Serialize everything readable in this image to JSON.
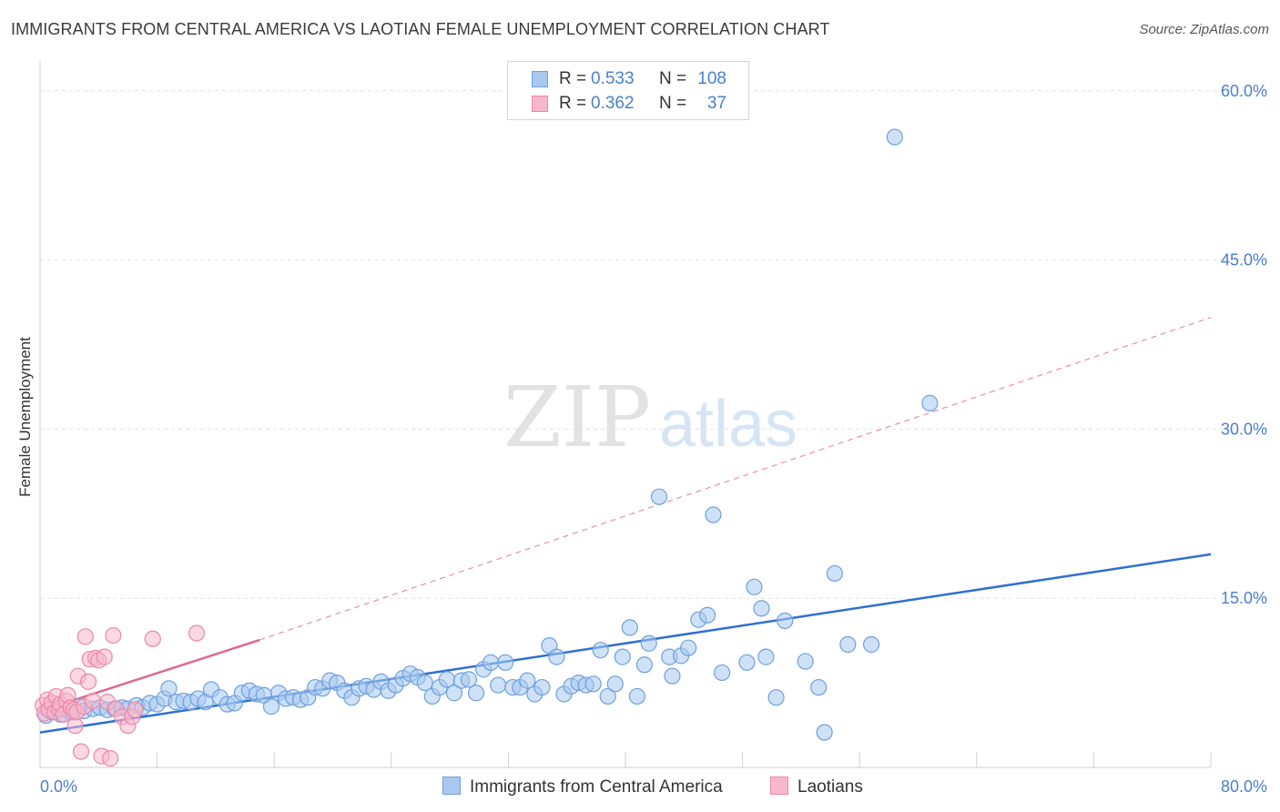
{
  "header": {
    "title": "IMMIGRANTS FROM CENTRAL AMERICA VS LAOTIAN FEMALE UNEMPLOYMENT CORRELATION CHART",
    "source": "Source: ZipAtlas.com"
  },
  "watermark": {
    "zip": "ZIP",
    "atlas": "atlas"
  },
  "legend_top": {
    "rows": [
      {
        "r_label": "R =",
        "r_value": "0.533",
        "n_label": "N =",
        "n_value": "108"
      },
      {
        "r_label": "R =",
        "r_value": "0.362",
        "n_label": "N =",
        "n_value": "37"
      }
    ]
  },
  "legend_bottom": {
    "items": [
      {
        "label": "Immigrants from Central America"
      },
      {
        "label": "Laotians"
      }
    ]
  },
  "colors": {
    "blue_fill": "#a8c8f0",
    "blue_stroke": "#6fa0dd",
    "blue_line": "#2f6fd0",
    "pink_fill": "#f8b8cc",
    "pink_stroke": "#ea88a8",
    "pink_line": "#e06890",
    "axis_text": "#4a7fcf",
    "grid": "#e2e2e2"
  },
  "chart_data": {
    "type": "scatter",
    "title": "IMMIGRANTS FROM CENTRAL AMERICA VS LAOTIAN FEMALE UNEMPLOYMENT CORRELATION CHART",
    "xlabel": "",
    "ylabel": "Female Unemployment",
    "xlim": [
      0,
      80
    ],
    "ylim": [
      0,
      62
    ],
    "x_tick_labels": [
      "0.0%",
      "80.0%"
    ],
    "y_ticks": [
      15,
      30,
      45,
      60
    ],
    "y_tick_labels": [
      "15.0%",
      "30.0%",
      "45.0%",
      "60.0%"
    ],
    "grid": true,
    "legend_position": "top-center",
    "series": [
      {
        "name": "Immigrants from Central America",
        "r": 0.533,
        "n": 108,
        "trend": {
          "x": [
            0,
            80
          ],
          "y": [
            3.1,
            18.9
          ],
          "style": "solid"
        },
        "points": [
          [
            0.4,
            4.6
          ],
          [
            0.8,
            4.9
          ],
          [
            1.1,
            5.3
          ],
          [
            1.4,
            4.7
          ],
          [
            1.8,
            5.1
          ],
          [
            2.2,
            4.9
          ],
          [
            2.7,
            5.4
          ],
          [
            3.0,
            5.0
          ],
          [
            3.6,
            5.2
          ],
          [
            4.1,
            5.3
          ],
          [
            4.6,
            5.1
          ],
          [
            5.1,
            5.2
          ],
          [
            5.6,
            5.3
          ],
          [
            6.0,
            5.2
          ],
          [
            6.6,
            5.5
          ],
          [
            7.0,
            5.3
          ],
          [
            7.5,
            5.7
          ],
          [
            8.0,
            5.6
          ],
          [
            8.5,
            6.1
          ],
          [
            8.8,
            7.0
          ],
          [
            9.3,
            5.8
          ],
          [
            9.8,
            5.9
          ],
          [
            10.3,
            5.8
          ],
          [
            10.8,
            6.1
          ],
          [
            11.3,
            5.8
          ],
          [
            11.7,
            6.9
          ],
          [
            12.3,
            6.2
          ],
          [
            12.8,
            5.6
          ],
          [
            13.3,
            5.7
          ],
          [
            13.8,
            6.6
          ],
          [
            14.3,
            6.8
          ],
          [
            14.8,
            6.5
          ],
          [
            15.3,
            6.4
          ],
          [
            15.8,
            5.4
          ],
          [
            16.3,
            6.6
          ],
          [
            16.8,
            6.1
          ],
          [
            17.3,
            6.2
          ],
          [
            17.8,
            6.0
          ],
          [
            18.3,
            6.2
          ],
          [
            18.8,
            7.1
          ],
          [
            19.3,
            7.0
          ],
          [
            19.8,
            7.7
          ],
          [
            20.3,
            7.5
          ],
          [
            20.8,
            6.8
          ],
          [
            21.3,
            6.2
          ],
          [
            21.8,
            7.0
          ],
          [
            22.3,
            7.2
          ],
          [
            22.8,
            6.9
          ],
          [
            23.3,
            7.6
          ],
          [
            23.8,
            6.8
          ],
          [
            24.3,
            7.3
          ],
          [
            24.8,
            7.9
          ],
          [
            25.3,
            8.3
          ],
          [
            25.8,
            8.0
          ],
          [
            26.3,
            7.5
          ],
          [
            26.8,
            6.3
          ],
          [
            27.3,
            7.1
          ],
          [
            27.8,
            7.8
          ],
          [
            28.3,
            6.6
          ],
          [
            28.8,
            7.7
          ],
          [
            29.3,
            7.8
          ],
          [
            29.8,
            6.6
          ],
          [
            30.3,
            8.7
          ],
          [
            30.8,
            9.3
          ],
          [
            31.3,
            7.3
          ],
          [
            31.8,
            9.3
          ],
          [
            32.3,
            7.1
          ],
          [
            32.8,
            7.1
          ],
          [
            33.3,
            7.7
          ],
          [
            33.8,
            6.5
          ],
          [
            34.3,
            7.1
          ],
          [
            34.8,
            10.8
          ],
          [
            35.3,
            9.8
          ],
          [
            35.8,
            6.5
          ],
          [
            36.3,
            7.2
          ],
          [
            36.8,
            7.5
          ],
          [
            37.3,
            7.3
          ],
          [
            37.8,
            7.4
          ],
          [
            38.3,
            10.4
          ],
          [
            38.8,
            6.3
          ],
          [
            39.3,
            7.4
          ],
          [
            39.8,
            9.8
          ],
          [
            40.3,
            12.4
          ],
          [
            40.8,
            6.3
          ],
          [
            41.3,
            9.1
          ],
          [
            41.6,
            11.0
          ],
          [
            42.3,
            24.0
          ],
          [
            43.0,
            9.8
          ],
          [
            43.2,
            8.1
          ],
          [
            43.8,
            9.9
          ],
          [
            44.3,
            10.6
          ],
          [
            45.0,
            13.1
          ],
          [
            45.6,
            13.5
          ],
          [
            46.0,
            22.4
          ],
          [
            46.6,
            8.4
          ],
          [
            48.3,
            9.3
          ],
          [
            48.8,
            16.0
          ],
          [
            49.3,
            14.1
          ],
          [
            49.6,
            9.8
          ],
          [
            50.3,
            6.2
          ],
          [
            50.9,
            13.0
          ],
          [
            52.3,
            9.4
          ],
          [
            53.2,
            7.1
          ],
          [
            53.6,
            3.1
          ],
          [
            54.3,
            17.2
          ],
          [
            55.2,
            10.9
          ],
          [
            56.8,
            10.9
          ],
          [
            58.4,
            55.9
          ],
          [
            60.8,
            32.3
          ]
        ]
      },
      {
        "name": "Laotians",
        "r": 0.362,
        "n": 37,
        "trend": {
          "x": [
            0,
            15
          ],
          "y": [
            5.0,
            11.3
          ],
          "style": "solid"
        },
        "trend_extended": {
          "x": [
            15,
            80
          ],
          "y": [
            11.3,
            39.9
          ],
          "style": "dashed"
        },
        "points": [
          [
            0.2,
            5.5
          ],
          [
            0.3,
            4.8
          ],
          [
            0.5,
            6.0
          ],
          [
            0.6,
            5.1
          ],
          [
            0.8,
            5.7
          ],
          [
            1.0,
            4.9
          ],
          [
            1.1,
            6.3
          ],
          [
            1.3,
            5.2
          ],
          [
            1.4,
            5.6
          ],
          [
            1.6,
            4.7
          ],
          [
            1.8,
            5.9
          ],
          [
            1.9,
            6.4
          ],
          [
            2.1,
            5.3
          ],
          [
            2.3,
            5.1
          ],
          [
            2.4,
            3.7
          ],
          [
            2.5,
            4.9
          ],
          [
            2.6,
            8.1
          ],
          [
            2.8,
            1.4
          ],
          [
            3.0,
            5.4
          ],
          [
            3.1,
            11.6
          ],
          [
            3.3,
            7.6
          ],
          [
            3.4,
            9.6
          ],
          [
            3.6,
            5.9
          ],
          [
            3.8,
            9.7
          ],
          [
            4.0,
            9.5
          ],
          [
            4.2,
            1.0
          ],
          [
            4.4,
            9.8
          ],
          [
            4.6,
            5.8
          ],
          [
            4.8,
            0.8
          ],
          [
            5.0,
            11.7
          ],
          [
            5.2,
            5.2
          ],
          [
            5.6,
            4.5
          ],
          [
            6.0,
            3.7
          ],
          [
            6.3,
            4.5
          ],
          [
            6.5,
            5.1
          ],
          [
            7.7,
            11.4
          ],
          [
            10.7,
            11.9
          ]
        ]
      }
    ]
  }
}
